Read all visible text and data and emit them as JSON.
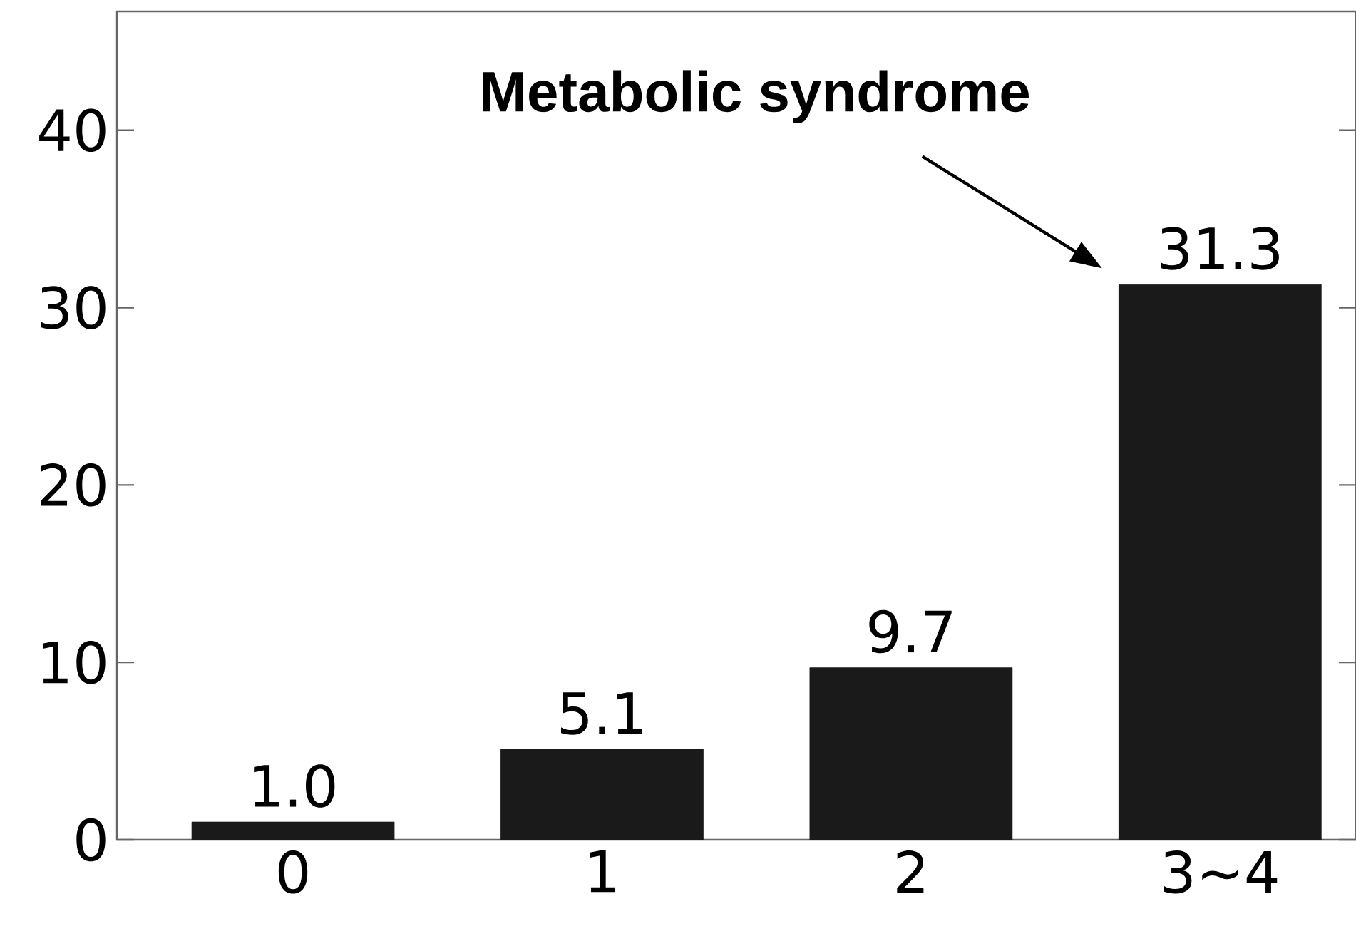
{
  "chart_data": {
    "type": "bar",
    "categories": [
      "0",
      "1",
      "2",
      "3∼4"
    ],
    "values": [
      1.0,
      5.1,
      9.7,
      31.3
    ],
    "color": "#1a1a1a",
    "value_labels": [
      "1.0",
      "5.1",
      "9.7",
      "31.3"
    ],
    "ylim": [
      0,
      46.7
    ],
    "yticks": [
      0,
      10,
      20,
      30,
      40
    ],
    "grid": false,
    "annotations": [
      "Metabolic syndrome"
    ]
  }
}
